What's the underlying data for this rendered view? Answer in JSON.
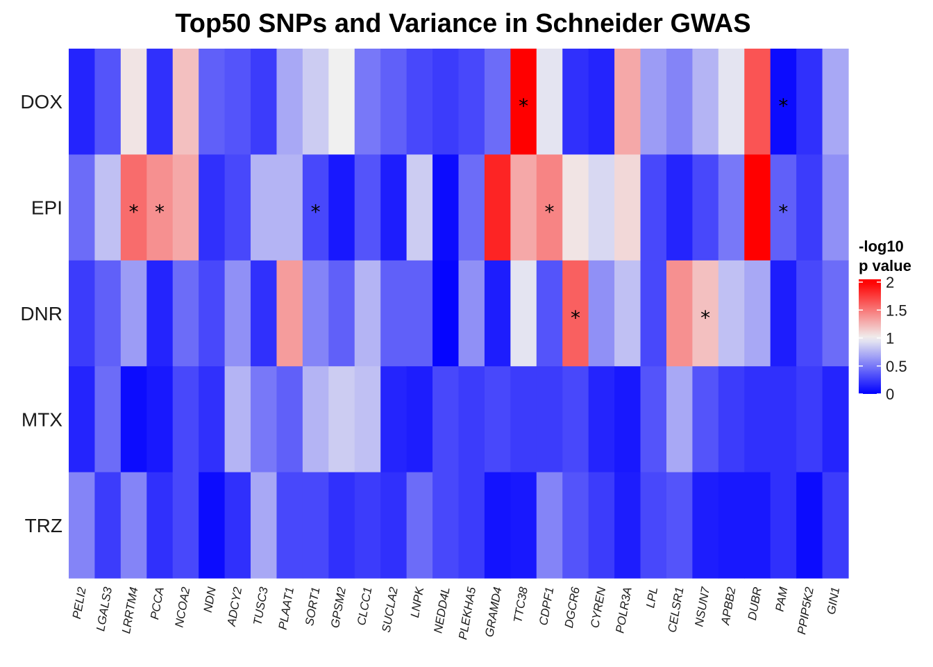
{
  "chart_data": {
    "type": "heatmap",
    "title": "Top50 SNPs and Variance in Schneider GWAS",
    "xlabel": "",
    "ylabel": "",
    "rows": [
      "DOX",
      "EPI",
      "DNR",
      "MTX",
      "TRZ"
    ],
    "columns": [
      "PELI2",
      "LGALS3",
      "LRRTM4",
      "PCCA",
      "NCOA2",
      "NDN",
      "ADCY2",
      "TUSC3",
      "PLAAT1",
      "SORT1",
      "GPSM2",
      "CLCC1",
      "SUCLA2",
      "LNPK",
      "NEDD4L",
      "PLEKHA5",
      "GRAMD4",
      "TTC38",
      "CDPF1",
      "DGCR6",
      "CYREN",
      "POLR3A",
      "LPL",
      "CELSR1",
      "NSUN7",
      "APBB2",
      "DUBR",
      "PAM",
      "PPIP5K2",
      "GIN1"
    ],
    "values": [
      [
        0.15,
        0.35,
        1.05,
        0.2,
        1.2,
        0.4,
        0.35,
        0.25,
        0.7,
        0.85,
        1.0,
        0.5,
        0.4,
        0.3,
        0.25,
        0.3,
        0.45,
        2.0,
        0.95,
        0.2,
        0.15,
        1.3,
        0.65,
        0.55,
        0.75,
        0.95,
        1.65,
        0.05,
        0.2,
        0.7
      ],
      [
        0.45,
        0.8,
        1.55,
        1.4,
        1.3,
        0.2,
        0.3,
        0.75,
        0.75,
        0.3,
        0.1,
        0.35,
        0.12,
        0.85,
        0.05,
        0.45,
        1.85,
        1.3,
        1.45,
        1.05,
        0.9,
        1.1,
        0.3,
        0.15,
        0.3,
        0.5,
        2.0,
        0.4,
        0.25,
        0.6
      ],
      [
        0.25,
        0.4,
        0.65,
        0.15,
        0.45,
        0.3,
        0.6,
        0.2,
        1.35,
        0.55,
        0.4,
        0.75,
        0.4,
        0.4,
        0.02,
        0.6,
        0.12,
        0.95,
        0.35,
        1.6,
        0.6,
        0.8,
        0.3,
        1.4,
        1.2,
        0.8,
        0.7,
        0.12,
        0.3,
        0.45
      ],
      [
        0.15,
        0.45,
        0.05,
        0.1,
        0.3,
        0.2,
        0.75,
        0.5,
        0.4,
        0.75,
        0.85,
        0.8,
        0.15,
        0.12,
        0.3,
        0.25,
        0.3,
        0.25,
        0.25,
        0.3,
        0.15,
        0.1,
        0.35,
        0.7,
        0.35,
        0.25,
        0.2,
        0.2,
        0.25,
        0.15
      ],
      [
        0.55,
        0.25,
        0.55,
        0.2,
        0.3,
        0.05,
        0.2,
        0.7,
        0.3,
        0.3,
        0.2,
        0.25,
        0.2,
        0.45,
        0.3,
        0.25,
        0.08,
        0.1,
        0.55,
        0.35,
        0.25,
        0.12,
        0.3,
        0.35,
        0.12,
        0.1,
        0.1,
        0.2,
        0.05,
        0.25
      ]
    ],
    "significance_marks": [
      {
        "row": "DOX",
        "column": "TTC38",
        "label": "*"
      },
      {
        "row": "DOX",
        "column": "PAM",
        "label": "*"
      },
      {
        "row": "EPI",
        "column": "LRRTM4",
        "label": "*"
      },
      {
        "row": "EPI",
        "column": "PCCA",
        "label": "*"
      },
      {
        "row": "EPI",
        "column": "SORT1",
        "label": "*"
      },
      {
        "row": "EPI",
        "column": "CDPF1",
        "label": "*"
      },
      {
        "row": "EPI",
        "column": "PAM",
        "label": "*"
      },
      {
        "row": "DNR",
        "column": "DGCR6",
        "label": "*"
      },
      {
        "row": "DNR",
        "column": "NSUN7",
        "label": "*"
      }
    ],
    "color_scale": {
      "low": "#0000ff",
      "mid": "#f0f0f0",
      "high": "#ff0000",
      "min": 0,
      "midpoint": 1,
      "max": 2.05
    },
    "legend": {
      "title_line1": "-log10",
      "title_line2": "p value",
      "ticks": [
        0,
        0.5,
        1,
        1.5,
        2
      ],
      "tick_labels": [
        "0",
        "0.5",
        "1",
        "1.5",
        "2"
      ],
      "position": "right"
    }
  }
}
